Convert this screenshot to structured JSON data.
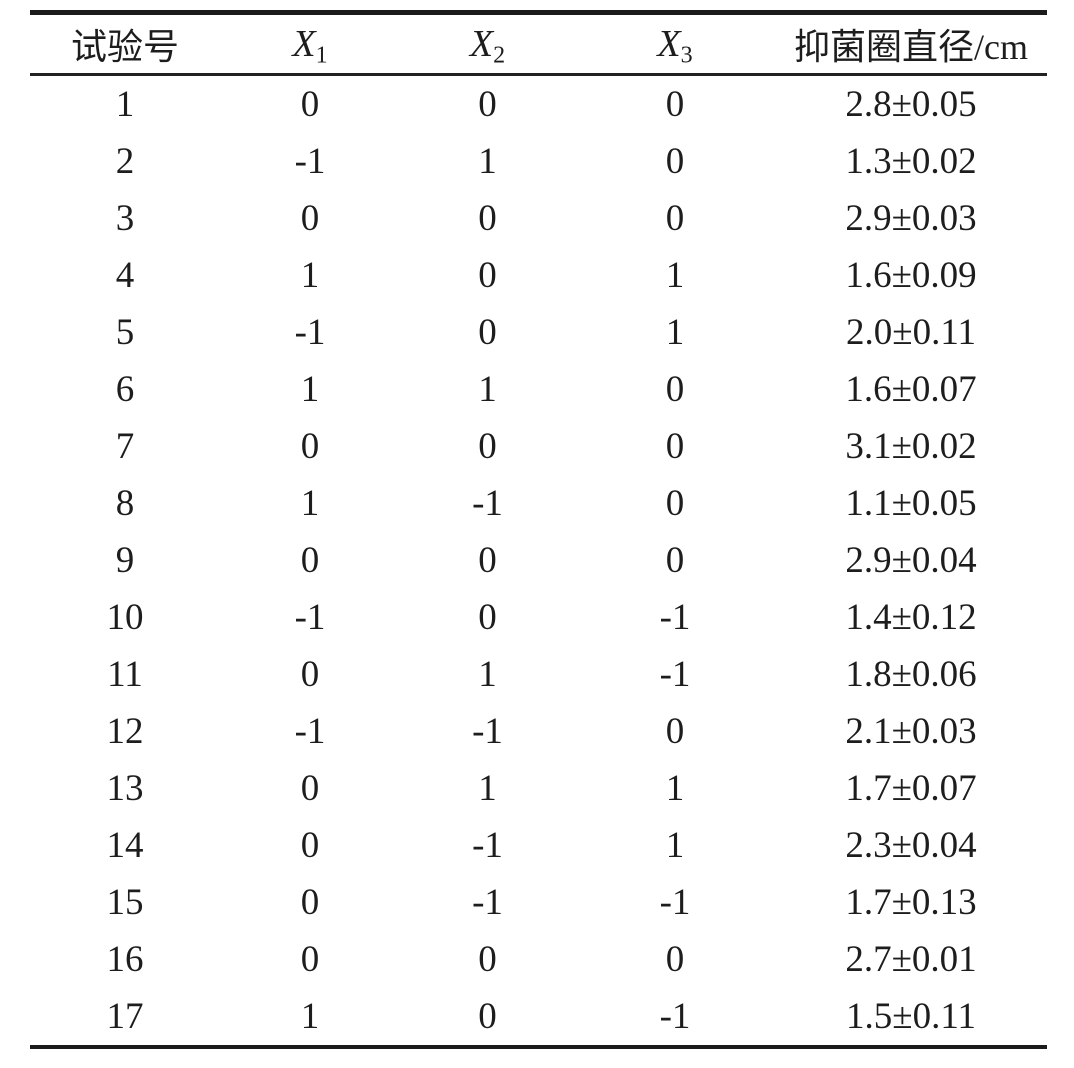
{
  "page": {
    "background_color": "#ffffff",
    "text_color": "#1d1d1d",
    "rule_color": "#1b1b1b"
  },
  "table": {
    "headers": [
      {
        "key": "run",
        "label": "试验号"
      },
      {
        "key": "x1",
        "label": "X",
        "subscript": "1",
        "italic": true
      },
      {
        "key": "x2",
        "label": "X",
        "subscript": "2",
        "italic": true
      },
      {
        "key": "x3",
        "label": "X",
        "subscript": "3",
        "italic": true
      },
      {
        "key": "diameter",
        "label": "抑菌圈直径/cm"
      }
    ],
    "rows": [
      {
        "run": "1",
        "x1": "0",
        "x2": "0",
        "x3": "0",
        "diameter": "2.8±0.05"
      },
      {
        "run": "2",
        "x1": "-1",
        "x2": "1",
        "x3": "0",
        "diameter": "1.3±0.02"
      },
      {
        "run": "3",
        "x1": "0",
        "x2": "0",
        "x3": "0",
        "diameter": "2.9±0.03"
      },
      {
        "run": "4",
        "x1": "1",
        "x2": "0",
        "x3": "1",
        "diameter": "1.6±0.09"
      },
      {
        "run": "5",
        "x1": "-1",
        "x2": "0",
        "x3": "1",
        "diameter": "2.0±0.11"
      },
      {
        "run": "6",
        "x1": "1",
        "x2": "1",
        "x3": "0",
        "diameter": "1.6±0.07"
      },
      {
        "run": "7",
        "x1": "0",
        "x2": "0",
        "x3": "0",
        "diameter": "3.1±0.02"
      },
      {
        "run": "8",
        "x1": "1",
        "x2": "-1",
        "x3": "0",
        "diameter": "1.1±0.05"
      },
      {
        "run": "9",
        "x1": "0",
        "x2": "0",
        "x3": "0",
        "diameter": "2.9±0.04"
      },
      {
        "run": "10",
        "x1": "-1",
        "x2": "0",
        "x3": "-1",
        "diameter": "1.4±0.12"
      },
      {
        "run": "11",
        "x1": "0",
        "x2": "1",
        "x3": "-1",
        "diameter": "1.8±0.06"
      },
      {
        "run": "12",
        "x1": "-1",
        "x2": "-1",
        "x3": "0",
        "diameter": "2.1±0.03"
      },
      {
        "run": "13",
        "x1": "0",
        "x2": "1",
        "x3": "1",
        "diameter": "1.7±0.07"
      },
      {
        "run": "14",
        "x1": "0",
        "x2": "-1",
        "x3": "1",
        "diameter": "2.3±0.04"
      },
      {
        "run": "15",
        "x1": "0",
        "x2": "-1",
        "x3": "-1",
        "diameter": "1.7±0.13"
      },
      {
        "run": "16",
        "x1": "0",
        "x2": "0",
        "x3": "0",
        "diameter": "2.7±0.01"
      },
      {
        "run": "17",
        "x1": "1",
        "x2": "0",
        "x3": "-1",
        "diameter": "1.5±0.11"
      }
    ]
  }
}
